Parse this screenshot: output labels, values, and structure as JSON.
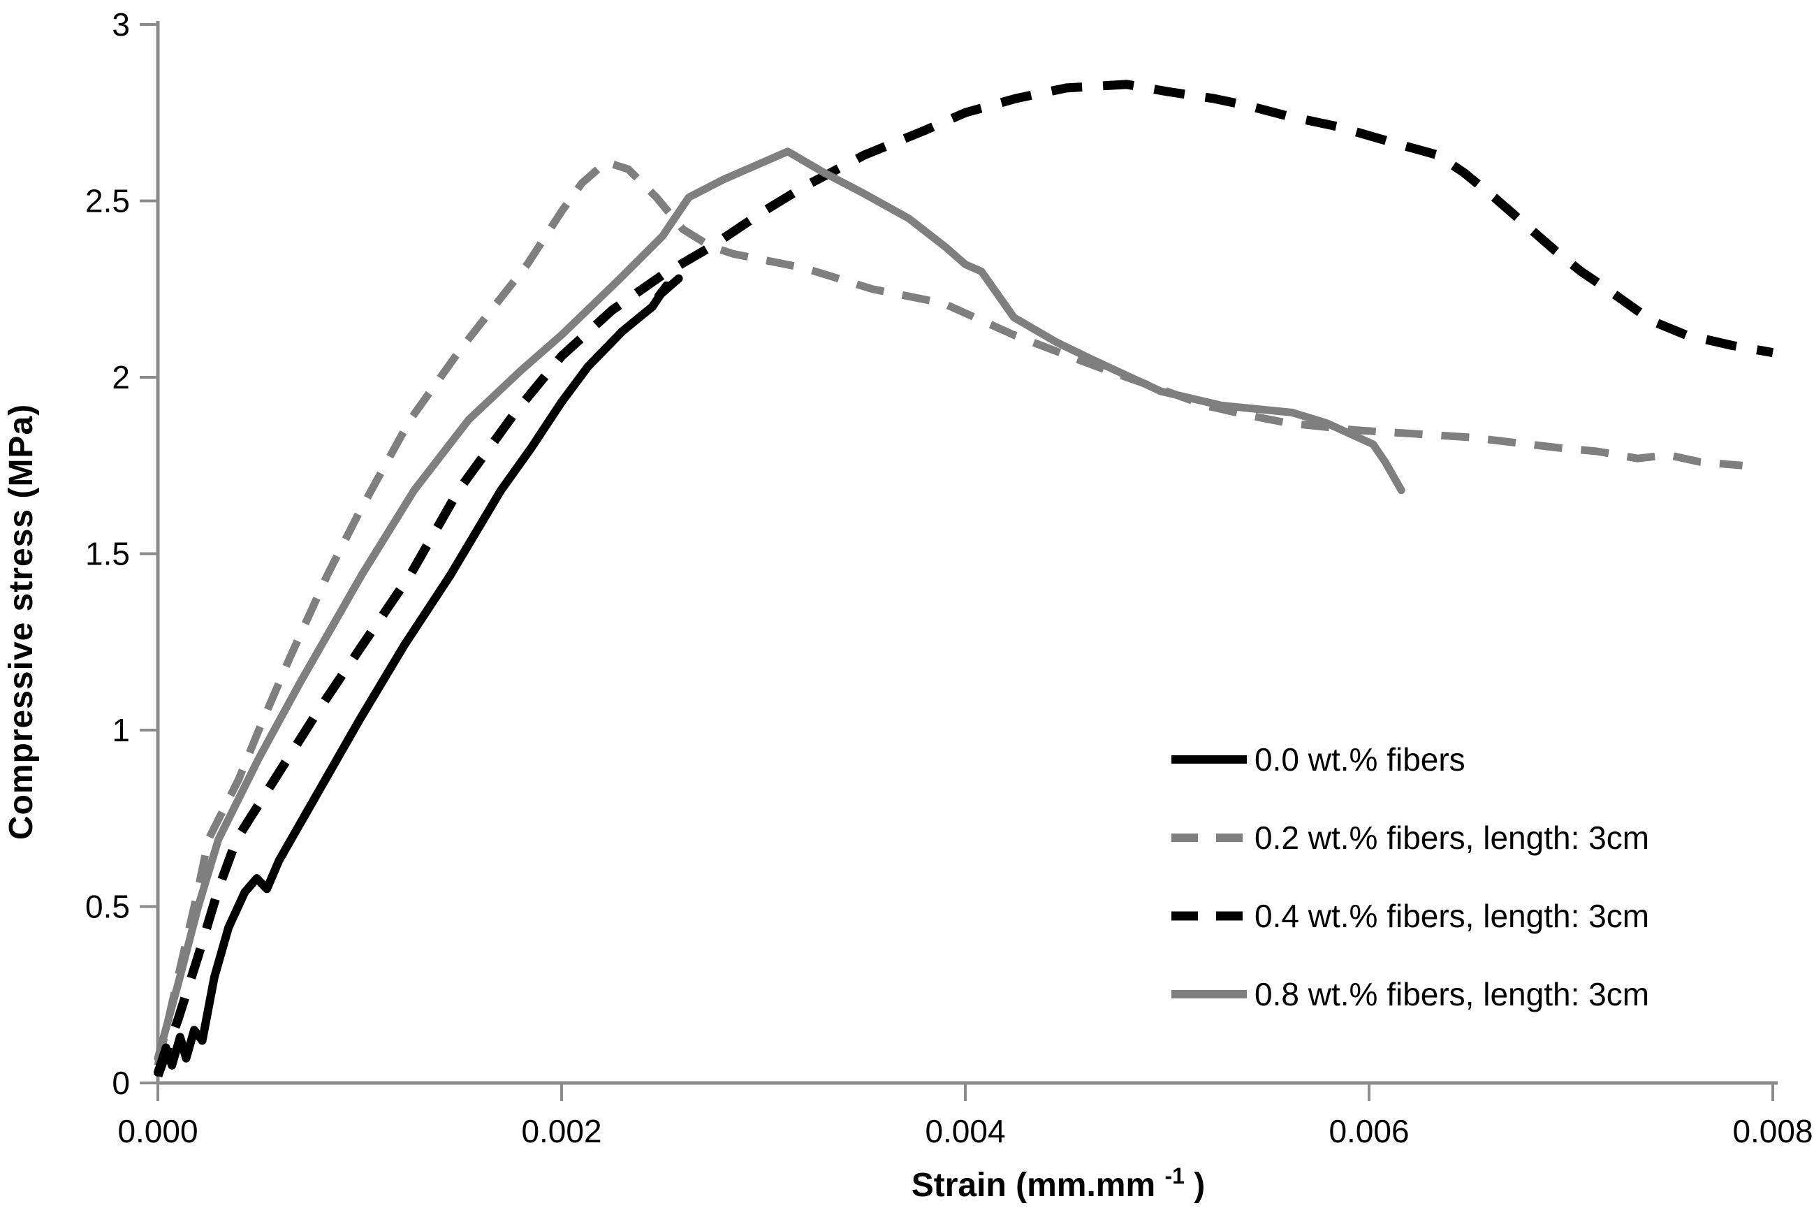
{
  "page": {
    "background": "#ffffff"
  },
  "chart_data": {
    "type": "line",
    "title": "",
    "xlabel": {
      "pre": "Strain (mm.mm",
      "sup": "-1",
      "post": ")"
    },
    "ylabel": "Compressive stress (MPa)",
    "xlim": [
      0,
      0.008
    ],
    "ylim": [
      0,
      3
    ],
    "grid": false,
    "axis_color": "#8c8c8c",
    "text_color": "#000000",
    "legend_position": "inside-lower-right",
    "x_ticks": {
      "values": [
        0,
        0.002,
        0.004,
        0.006,
        0.008
      ],
      "labels": [
        "0.000",
        "0.002",
        "0.004",
        "0.006",
        "0.008"
      ]
    },
    "y_ticks": {
      "values": [
        0,
        0.5,
        1,
        1.5,
        2,
        2.5,
        3
      ],
      "labels": [
        "0",
        "0.5",
        "1",
        "1.5",
        "2",
        "2.5",
        "3"
      ]
    },
    "series": [
      {
        "name": "0.0 wt.% fibers",
        "color": "#000000",
        "style": "solid",
        "width": 12,
        "dash": null,
        "points": [
          [
            0,
            0.03
          ],
          [
            4e-05,
            0.1
          ],
          [
            7e-05,
            0.05
          ],
          [
            0.00011,
            0.13
          ],
          [
            0.00014,
            0.07
          ],
          [
            0.00018,
            0.15
          ],
          [
            0.00022,
            0.12
          ],
          [
            0.00028,
            0.3
          ],
          [
            0.00035,
            0.44
          ],
          [
            0.00043,
            0.54
          ],
          [
            0.00049,
            0.58
          ],
          [
            0.00054,
            0.55
          ],
          [
            0.0006,
            0.63
          ],
          [
            0.0008,
            0.83
          ],
          [
            0.001,
            1.03
          ],
          [
            0.00122,
            1.24
          ],
          [
            0.00145,
            1.44
          ],
          [
            0.0017,
            1.68
          ],
          [
            0.00185,
            1.8
          ],
          [
            0.002,
            1.93
          ],
          [
            0.00213,
            2.03
          ],
          [
            0.0023,
            2.13
          ],
          [
            0.00245,
            2.2
          ],
          [
            0.00252,
            2.26
          ],
          [
            0.00248,
            2.23
          ],
          [
            0.00258,
            2.28
          ]
        ]
      },
      {
        "name": "0.2 wt.% fibers, length: 3cm",
        "color": "#7f7f7f",
        "style": "dashed",
        "width": 11,
        "dash": [
          40,
          27
        ],
        "points": [
          [
            0,
            0.05
          ],
          [
            0.0001,
            0.3
          ],
          [
            0.0002,
            0.55
          ],
          [
            0.00025,
            0.69
          ],
          [
            0.0004,
            0.86
          ],
          [
            0.0005,
            1.0
          ],
          [
            0.00065,
            1.2
          ],
          [
            0.00084,
            1.44
          ],
          [
            0.001,
            1.62
          ],
          [
            0.00125,
            1.88
          ],
          [
            0.0015,
            2.08
          ],
          [
            0.00183,
            2.32
          ],
          [
            0.002,
            2.47
          ],
          [
            0.0021,
            2.55
          ],
          [
            0.00222,
            2.61
          ],
          [
            0.00233,
            2.59
          ],
          [
            0.00247,
            2.51
          ],
          [
            0.0026,
            2.42
          ],
          [
            0.00274,
            2.37
          ],
          [
            0.00285,
            2.35
          ],
          [
            0.0032,
            2.31
          ],
          [
            0.00354,
            2.25
          ],
          [
            0.00389,
            2.21
          ],
          [
            0.00424,
            2.12
          ],
          [
            0.00456,
            2.05
          ],
          [
            0.0047,
            2.02
          ],
          [
            0.00495,
            1.97
          ],
          [
            0.00519,
            1.92
          ],
          [
            0.00542,
            1.89
          ],
          [
            0.0056,
            1.87
          ],
          [
            0.00594,
            1.85
          ],
          [
            0.00622,
            1.84
          ],
          [
            0.0065,
            1.83
          ],
          [
            0.00694,
            1.8
          ],
          [
            0.00713,
            1.79
          ],
          [
            0.00733,
            1.77
          ],
          [
            0.00748,
            1.78
          ],
          [
            0.00764,
            1.76
          ],
          [
            0.00785,
            1.75
          ]
        ]
      },
      {
        "name": "0.4 wt.% fibers, length: 3cm",
        "color": "#000000",
        "style": "dashed",
        "width": 13,
        "dash": [
          44,
          30
        ],
        "points": [
          [
            0,
            0.02
          ],
          [
            0.0001,
            0.18
          ],
          [
            0.0002,
            0.36
          ],
          [
            0.0003,
            0.55
          ],
          [
            0.00039,
            0.69
          ],
          [
            0.0006,
            0.88
          ],
          [
            0.0008,
            1.06
          ],
          [
            0.001,
            1.23
          ],
          [
            0.00125,
            1.44
          ],
          [
            0.00149,
            1.68
          ],
          [
            0.00177,
            1.9
          ],
          [
            0.002,
            2.06
          ],
          [
            0.00225,
            2.19
          ],
          [
            0.0025,
            2.29
          ],
          [
            0.00274,
            2.37
          ],
          [
            0.003,
            2.47
          ],
          [
            0.0032,
            2.54
          ],
          [
            0.0035,
            2.63
          ],
          [
            0.0038,
            2.7
          ],
          [
            0.004,
            2.75
          ],
          [
            0.00425,
            2.79
          ],
          [
            0.0045,
            2.82
          ],
          [
            0.0048,
            2.83
          ],
          [
            0.005,
            2.81
          ],
          [
            0.00523,
            2.79
          ],
          [
            0.0054,
            2.77
          ],
          [
            0.0056,
            2.74
          ],
          [
            0.00585,
            2.71
          ],
          [
            0.00597,
            2.69
          ],
          [
            0.00615,
            2.66
          ],
          [
            0.00634,
            2.63
          ],
          [
            0.00647,
            2.58
          ],
          [
            0.00662,
            2.51
          ],
          [
            0.00678,
            2.43
          ],
          [
            0.00692,
            2.36
          ],
          [
            0.00705,
            2.3
          ],
          [
            0.00718,
            2.25
          ],
          [
            0.0074,
            2.16
          ],
          [
            0.00757,
            2.12
          ],
          [
            0.0078,
            2.09
          ],
          [
            0.008,
            2.07
          ]
        ]
      },
      {
        "name": "0.8 wt.% fibers, length: 3cm",
        "color": "#7f7f7f",
        "style": "solid",
        "width": 11,
        "dash": null,
        "points": [
          [
            0,
            0.07
          ],
          [
            0.0001,
            0.28
          ],
          [
            0.0002,
            0.5
          ],
          [
            0.0003,
            0.69
          ],
          [
            0.0005,
            0.92
          ],
          [
            0.0007,
            1.13
          ],
          [
            0.00101,
            1.44
          ],
          [
            0.00127,
            1.68
          ],
          [
            0.00154,
            1.88
          ],
          [
            0.0018,
            2.02
          ],
          [
            0.002,
            2.12
          ],
          [
            0.00229,
            2.28
          ],
          [
            0.0025,
            2.4
          ],
          [
            0.00263,
            2.51
          ],
          [
            0.0028,
            2.56
          ],
          [
            0.003,
            2.61
          ],
          [
            0.00312,
            2.64
          ],
          [
            0.0033,
            2.58
          ],
          [
            0.0035,
            2.52
          ],
          [
            0.00372,
            2.45
          ],
          [
            0.0039,
            2.37
          ],
          [
            0.004,
            2.32
          ],
          [
            0.00408,
            2.3
          ],
          [
            0.00424,
            2.17
          ],
          [
            0.00445,
            2.1
          ],
          [
            0.00463,
            2.05
          ],
          [
            0.00497,
            1.96
          ],
          [
            0.00527,
            1.92
          ],
          [
            0.00562,
            1.9
          ],
          [
            0.00579,
            1.87
          ],
          [
            0.00602,
            1.81
          ],
          [
            0.00608,
            1.76
          ],
          [
            0.00616,
            1.68
          ]
        ]
      }
    ]
  }
}
